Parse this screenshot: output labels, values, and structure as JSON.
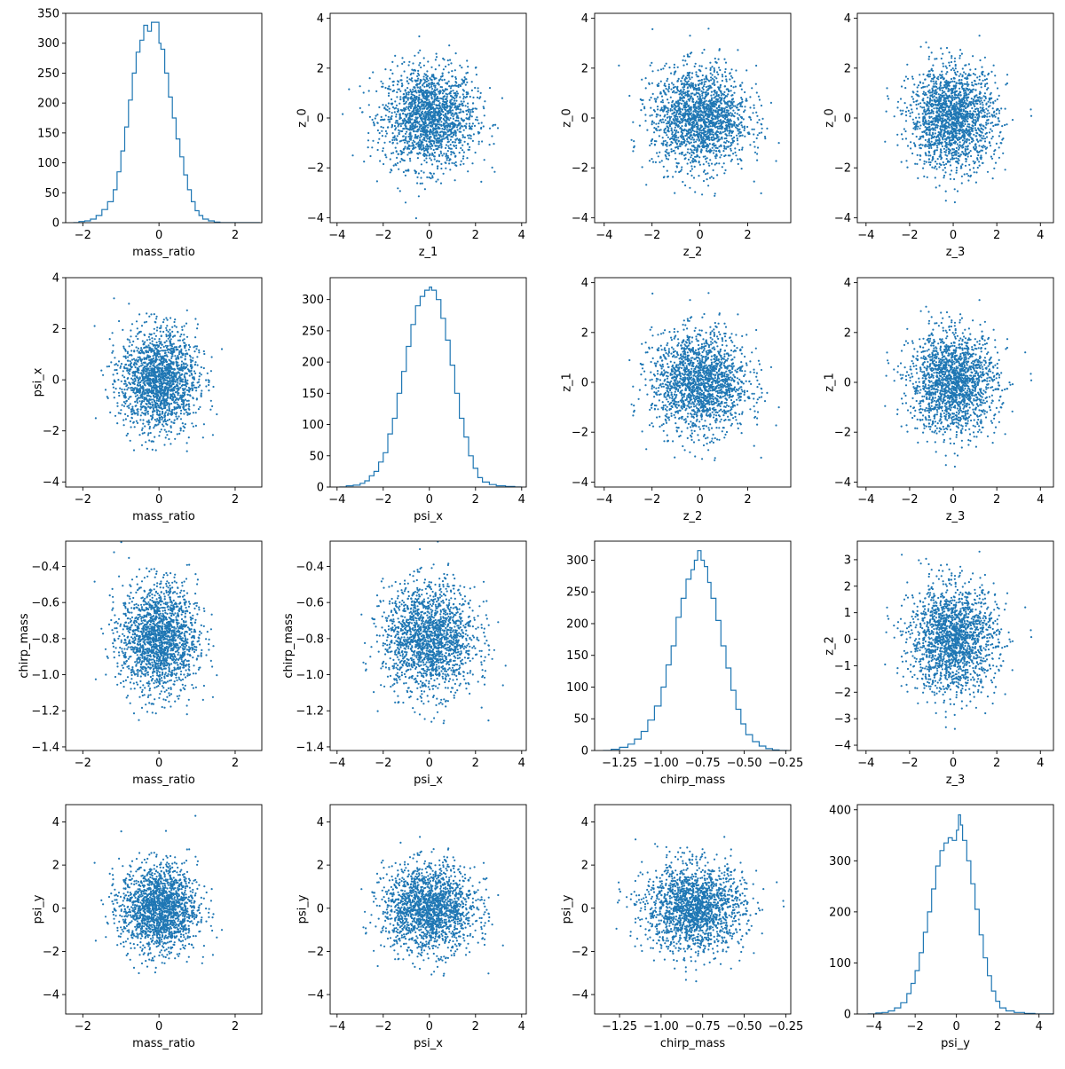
{
  "chart_data": [
    {
      "type": "histogram",
      "row": 0,
      "col": 0,
      "xlabel": "mass_ratio",
      "ylabel": "",
      "x": [
        -2.25,
        -2.1,
        -1.95,
        -1.8,
        -1.65,
        -1.5,
        -1.35,
        -1.2,
        -1.1,
        -1.0,
        -0.9,
        -0.8,
        -0.7,
        -0.6,
        -0.5,
        -0.4,
        -0.3,
        -0.2,
        -0.1,
        0.0,
        0.05,
        0.15,
        0.25,
        0.35,
        0.45,
        0.55,
        0.65,
        0.75,
        0.85,
        0.95,
        1.05,
        1.15,
        1.3,
        1.45,
        1.6,
        1.8,
        2.0,
        2.25,
        2.5
      ],
      "values": [
        0,
        2,
        3,
        6,
        12,
        22,
        35,
        55,
        85,
        120,
        160,
        205,
        250,
        285,
        305,
        330,
        320,
        335,
        335,
        300,
        290,
        250,
        210,
        175,
        140,
        110,
        80,
        55,
        35,
        20,
        12,
        6,
        3,
        1,
        0,
        0,
        0,
        0,
        0
      ],
      "xlim": [
        -2.45,
        2.7
      ],
      "ylim": [
        0,
        350
      ],
      "xticks": [
        -2,
        0,
        2
      ],
      "yticks": [
        0,
        50,
        100,
        150,
        200,
        250,
        300,
        350
      ],
      "color": "#1f77b4"
    },
    {
      "type": "scatter",
      "row": 0,
      "col": 1,
      "xlabel": "z_1",
      "ylabel": "z_0",
      "xlim": [
        -4.3,
        4.2
      ],
      "ylim": [
        -4.2,
        4.2
      ],
      "xticks": [
        -4,
        -2,
        0,
        2,
        4
      ],
      "yticks": [
        -4,
        -2,
        0,
        2,
        4
      ],
      "cx": 0,
      "cy": 0,
      "sx": 1,
      "sy": 1,
      "color": "#1f77b4"
    },
    {
      "type": "scatter",
      "row": 0,
      "col": 2,
      "xlabel": "z_2",
      "ylabel": "z_0",
      "xlim": [
        -4.4,
        3.8
      ],
      "ylim": [
        -4.2,
        4.2
      ],
      "xticks": [
        -4,
        -2,
        0,
        2
      ],
      "yticks": [
        -4,
        -2,
        0,
        2,
        4
      ],
      "cx": 0,
      "cy": 0,
      "sx": 1,
      "sy": 1,
      "color": "#1f77b4"
    },
    {
      "type": "scatter",
      "row": 0,
      "col": 3,
      "xlabel": "z_3",
      "ylabel": "z_0",
      "xlim": [
        -4.4,
        4.6
      ],
      "ylim": [
        -4.2,
        4.2
      ],
      "xticks": [
        -4,
        -2,
        0,
        2,
        4
      ],
      "yticks": [
        -4,
        -2,
        0,
        2,
        4
      ],
      "cx": 0,
      "cy": 0,
      "sx": 1,
      "sy": 1,
      "color": "#1f77b4"
    },
    {
      "type": "scatter",
      "row": 1,
      "col": 0,
      "xlabel": "mass_ratio",
      "ylabel": "psi_x",
      "xlim": [
        -2.45,
        2.7
      ],
      "ylim": [
        -4.2,
        4.0
      ],
      "xticks": [
        -2,
        0,
        2
      ],
      "yticks": [
        -4,
        -2,
        0,
        2,
        4
      ],
      "cx": 0,
      "cy": 0,
      "sx": 0.5,
      "sy": 1,
      "color": "#1f77b4"
    },
    {
      "type": "histogram",
      "row": 1,
      "col": 1,
      "xlabel": "psi_x",
      "ylabel": "",
      "x": [
        -3.9,
        -3.6,
        -3.3,
        -3.0,
        -2.8,
        -2.6,
        -2.4,
        -2.2,
        -2.0,
        -1.8,
        -1.6,
        -1.4,
        -1.2,
        -1.0,
        -0.8,
        -0.6,
        -0.4,
        -0.2,
        0.0,
        0.1,
        0.3,
        0.5,
        0.7,
        0.9,
        1.1,
        1.3,
        1.5,
        1.7,
        1.9,
        2.1,
        2.3,
        2.6,
        2.9,
        3.3,
        3.7
      ],
      "values": [
        0,
        2,
        3,
        6,
        10,
        18,
        25,
        40,
        55,
        85,
        110,
        150,
        185,
        225,
        260,
        290,
        305,
        315,
        320,
        315,
        300,
        270,
        235,
        195,
        150,
        110,
        80,
        50,
        30,
        15,
        8,
        4,
        2,
        1,
        0
      ],
      "xlim": [
        -4.3,
        4.2
      ],
      "ylim": [
        0,
        335
      ],
      "xticks": [
        -4,
        -2,
        0,
        2,
        4
      ],
      "yticks": [
        0,
        50,
        100,
        150,
        200,
        250,
        300
      ],
      "color": "#1f77b4"
    },
    {
      "type": "scatter",
      "row": 1,
      "col": 2,
      "xlabel": "z_2",
      "ylabel": "z_1",
      "xlim": [
        -4.4,
        3.8
      ],
      "ylim": [
        -4.2,
        4.2
      ],
      "xticks": [
        -4,
        -2,
        0,
        2
      ],
      "yticks": [
        -4,
        -2,
        0,
        2,
        4
      ],
      "cx": 0,
      "cy": 0,
      "sx": 1,
      "sy": 1,
      "color": "#1f77b4"
    },
    {
      "type": "scatter",
      "row": 1,
      "col": 3,
      "xlabel": "z_3",
      "ylabel": "z_1",
      "xlim": [
        -4.4,
        4.6
      ],
      "ylim": [
        -4.2,
        4.2
      ],
      "xticks": [
        -4,
        -2,
        0,
        2,
        4
      ],
      "yticks": [
        -4,
        -2,
        0,
        2,
        4
      ],
      "cx": 0,
      "cy": 0,
      "sx": 1,
      "sy": 1,
      "color": "#1f77b4"
    },
    {
      "type": "scatter",
      "row": 2,
      "col": 0,
      "xlabel": "mass_ratio",
      "ylabel": "chirp_mass",
      "xlim": [
        -2.45,
        2.7
      ],
      "ylim": [
        -1.42,
        -0.26
      ],
      "xticks": [
        -2,
        0,
        2
      ],
      "yticks": [
        -1.4,
        -1.2,
        -1.0,
        -0.8,
        -0.6,
        -0.4
      ],
      "ytickfmt": 1,
      "cx": 0,
      "cy": -0.8,
      "sx": 0.5,
      "sy": 0.15,
      "color": "#1f77b4"
    },
    {
      "type": "scatter",
      "row": 2,
      "col": 1,
      "xlabel": "psi_x",
      "ylabel": "chirp_mass",
      "xlim": [
        -4.3,
        4.2
      ],
      "ylim": [
        -1.42,
        -0.26
      ],
      "xticks": [
        -4,
        -2,
        0,
        2,
        4
      ],
      "yticks": [
        -1.4,
        -1.2,
        -1.0,
        -0.8,
        -0.6,
        -0.4
      ],
      "ytickfmt": 1,
      "cx": 0,
      "cy": -0.8,
      "sx": 1,
      "sy": 0.15,
      "color": "#1f77b4"
    },
    {
      "type": "histogram",
      "row": 2,
      "col": 2,
      "xlabel": "chirp_mass",
      "ylabel": "",
      "x": [
        -1.35,
        -1.3,
        -1.25,
        -1.2,
        -1.16,
        -1.12,
        -1.08,
        -1.04,
        -1.0,
        -0.97,
        -0.94,
        -0.91,
        -0.88,
        -0.85,
        -0.82,
        -0.8,
        -0.78,
        -0.76,
        -0.74,
        -0.72,
        -0.7,
        -0.67,
        -0.64,
        -0.61,
        -0.58,
        -0.55,
        -0.52,
        -0.49,
        -0.45,
        -0.41,
        -0.37,
        -0.33,
        -0.29
      ],
      "values": [
        0,
        2,
        5,
        10,
        18,
        30,
        48,
        70,
        100,
        135,
        165,
        210,
        240,
        270,
        285,
        300,
        315,
        300,
        290,
        265,
        240,
        205,
        165,
        130,
        95,
        65,
        42,
        25,
        14,
        7,
        3,
        1,
        0
      ],
      "xlim": [
        -1.4,
        -0.22
      ],
      "ylim": [
        0,
        330
      ],
      "xticks": [
        -1.25,
        -1.0,
        -0.75,
        -0.5,
        -0.25
      ],
      "xtickfmt": 2,
      "yticks": [
        0,
        50,
        100,
        150,
        200,
        250,
        300
      ],
      "color": "#1f77b4"
    },
    {
      "type": "scatter",
      "row": 2,
      "col": 3,
      "xlabel": "z_3",
      "ylabel": "z_2",
      "xlim": [
        -4.4,
        4.6
      ],
      "ylim": [
        -4.2,
        3.7
      ],
      "xticks": [
        -4,
        -2,
        0,
        2,
        4
      ],
      "yticks": [
        -4,
        -3,
        -2,
        -1,
        0,
        1,
        2,
        3
      ],
      "cx": 0,
      "cy": 0,
      "sx": 1,
      "sy": 1,
      "color": "#1f77b4"
    },
    {
      "type": "scatter",
      "row": 3,
      "col": 0,
      "xlabel": "mass_ratio",
      "ylabel": "psi_y",
      "xlim": [
        -2.45,
        2.7
      ],
      "ylim": [
        -4.9,
        4.8
      ],
      "xticks": [
        -2,
        0,
        2
      ],
      "yticks": [
        -4,
        -2,
        0,
        2,
        4
      ],
      "cx": 0,
      "cy": 0,
      "sx": 0.5,
      "sy": 1,
      "color": "#1f77b4"
    },
    {
      "type": "scatter",
      "row": 3,
      "col": 1,
      "xlabel": "psi_x",
      "ylabel": "psi_y",
      "xlim": [
        -4.3,
        4.2
      ],
      "ylim": [
        -4.9,
        4.8
      ],
      "xticks": [
        -4,
        -2,
        0,
        2,
        4
      ],
      "yticks": [
        -4,
        -2,
        0,
        2,
        4
      ],
      "cx": 0,
      "cy": 0,
      "sx": 1,
      "sy": 1,
      "color": "#1f77b4"
    },
    {
      "type": "scatter",
      "row": 3,
      "col": 2,
      "xlabel": "chirp_mass",
      "ylabel": "psi_y",
      "xlim": [
        -1.4,
        -0.22
      ],
      "ylim": [
        -4.9,
        4.8
      ],
      "xticks": [
        -1.25,
        -1.0,
        -0.75,
        -0.5,
        -0.25
      ],
      "xtickfmt": 2,
      "yticks": [
        -4,
        -2,
        0,
        2,
        4
      ],
      "cx": -0.8,
      "cy": 0,
      "sx": 0.15,
      "sy": 1,
      "color": "#1f77b4"
    },
    {
      "type": "histogram",
      "row": 3,
      "col": 3,
      "xlabel": "psi_y",
      "ylabel": "",
      "x": [
        -4.3,
        -3.9,
        -3.6,
        -3.3,
        -3.0,
        -2.7,
        -2.4,
        -2.2,
        -2.0,
        -1.8,
        -1.6,
        -1.4,
        -1.2,
        -1.0,
        -0.8,
        -0.6,
        -0.4,
        -0.2,
        0.0,
        0.1,
        0.2,
        0.3,
        0.5,
        0.7,
        0.9,
        1.1,
        1.3,
        1.5,
        1.7,
        1.9,
        2.1,
        2.4,
        2.8,
        3.3,
        3.8,
        4.3
      ],
      "values": [
        0,
        2,
        3,
        6,
        12,
        22,
        40,
        60,
        85,
        120,
        160,
        200,
        245,
        290,
        320,
        335,
        345,
        340,
        360,
        390,
        370,
        340,
        300,
        255,
        205,
        155,
        110,
        75,
        45,
        25,
        12,
        6,
        3,
        1,
        0,
        0
      ],
      "xlim": [
        -4.8,
        4.7
      ],
      "ylim": [
        0,
        410
      ],
      "xticks": [
        -4,
        -2,
        0,
        2,
        4
      ],
      "yticks": [
        0,
        100,
        200,
        300,
        400
      ],
      "color": "#1f77b4"
    }
  ]
}
